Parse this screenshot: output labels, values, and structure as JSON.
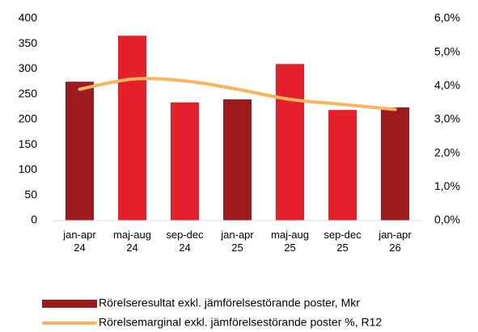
{
  "chart_data": {
    "type": "bar",
    "categories": [
      [
        "jan-apr",
        "24"
      ],
      [
        "maj-aug",
        "24"
      ],
      [
        "sep-dec",
        "24"
      ],
      [
        "jan-apr",
        "25"
      ],
      [
        "maj-aug",
        "25"
      ],
      [
        "sep-dec",
        "25"
      ],
      [
        "jan-apr",
        "26"
      ]
    ],
    "series": [
      {
        "name": "Rörelseresultat exkl. jämförelsestörande poster, Mkr",
        "type": "bar",
        "color": "#9b1b1f",
        "colors": [
          "#9b1b1f",
          "#e3202b",
          "#e3202b",
          "#9b1b1f",
          "#e3202b",
          "#e3202b",
          "#9b1b1f"
        ],
        "values": [
          275,
          366,
          234,
          240,
          310,
          219,
          224
        ]
      },
      {
        "name": "Rörelsemarginal exkl. jämförelsestörande poster %, R12",
        "type": "line",
        "axis": "y2",
        "color": "#f7b55e",
        "values": [
          3.9,
          4.2,
          4.15,
          3.9,
          3.6,
          3.45,
          3.3
        ]
      }
    ],
    "ylim": [
      0,
      400
    ],
    "yticks": [
      0,
      50,
      100,
      150,
      200,
      250,
      300,
      350,
      400
    ],
    "y2lim": [
      0,
      6
    ],
    "y2ticks": [
      {
        "value": 0,
        "label": "0,0%"
      },
      {
        "value": 1,
        "label": "1,0%"
      },
      {
        "value": 2,
        "label": "2,0%"
      },
      {
        "value": 3,
        "label": "3,0%"
      },
      {
        "value": 4,
        "label": "4,0%"
      },
      {
        "value": 5,
        "label": "5,0%"
      },
      {
        "value": 6,
        "label": "6,0%"
      }
    ]
  }
}
